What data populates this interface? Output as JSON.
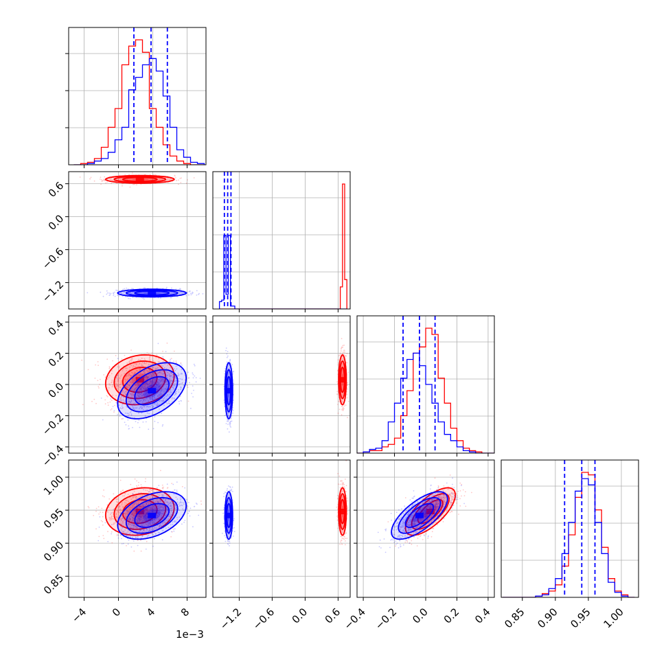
{
  "chart_data": {
    "type": "corner",
    "parameters": [
      {
        "range": [
          -5.8,
          10.2
        ],
        "ticks": [
          -4,
          0,
          4,
          8
        ],
        "tick_labels": [
          "−4",
          "0",
          "4",
          "8"
        ],
        "offset_text": "1e−3"
      },
      {
        "range": [
          -1.68,
          0.82
        ],
        "ticks": [
          -1.2,
          -0.6,
          0.0,
          0.6
        ],
        "tick_labels": [
          "−1.2",
          "−0.6",
          "0.0",
          "0.6"
        ]
      },
      {
        "range": [
          -0.44,
          0.44
        ],
        "ticks": [
          -0.4,
          -0.2,
          0.0,
          0.2,
          0.4
        ],
        "tick_labels": [
          "−0.4",
          "−0.2",
          "0.0",
          "0.2",
          "0.4"
        ]
      },
      {
        "range": [
          0.818,
          1.026
        ],
        "ticks": [
          0.85,
          0.9,
          0.95,
          1.0
        ],
        "tick_labels": [
          "0.85",
          "0.90",
          "0.95",
          "1.00"
        ]
      }
    ],
    "series": [
      {
        "color": "#ff0000",
        "mean": [
          2.5,
          0.68,
          0.03,
          0.948
        ],
        "std": [
          2.0,
          0.035,
          0.08,
          0.018
        ],
        "corr": {
          "0_2": 0.15,
          "0_3": 0.15,
          "2_3": 0.7
        }
      },
      {
        "color": "#0000ff",
        "mean": [
          3.9,
          -1.39,
          -0.04,
          0.942
        ],
        "std": [
          2.0,
          0.035,
          0.09,
          0.018
        ],
        "corr": {
          "0_2": 0.45,
          "0_3": 0.4,
          "2_3": 0.7
        }
      }
    ],
    "quantile_lines": {
      "color": "#0000ff",
      "values": [
        [
          1.8,
          3.8,
          5.7
        ],
        [
          -1.47,
          -1.41,
          -1.35
        ],
        [
          -0.145,
          -0.04,
          0.06
        ],
        [
          0.914,
          0.94,
          0.96
        ]
      ]
    },
    "histograms": [
      {
        "bins": [
          -5.2,
          -4.4,
          -3.6,
          -2.8,
          -2.0,
          -1.2,
          -0.4,
          0.4,
          1.2,
          2.0,
          2.8,
          3.6,
          4.4,
          5.2,
          6.0,
          6.8,
          7.6,
          8.4,
          9.2,
          10.0
        ],
        "red": [
          0.0,
          0.01,
          0.02,
          0.05,
          0.14,
          0.3,
          0.45,
          0.8,
          0.95,
          1.0,
          0.9,
          0.45,
          0.3,
          0.16,
          0.07,
          0.03,
          0.01,
          0.0,
          0.0
        ],
        "blue": [
          0.0,
          0.0,
          0.01,
          0.03,
          0.05,
          0.1,
          0.2,
          0.3,
          0.6,
          0.7,
          0.8,
          0.85,
          0.75,
          0.55,
          0.3,
          0.12,
          0.06,
          0.02,
          0.01
        ]
      },
      {
        "bins": [
          -1.56,
          -1.52,
          -1.48,
          -1.44,
          -1.4,
          -1.36,
          -1.32,
          -1.28,
          -1.24,
          0.56,
          0.6,
          0.64,
          0.68,
          0.72,
          0.76
        ],
        "red": [
          0,
          0,
          0,
          0,
          0,
          0,
          0,
          0,
          0,
          0,
          0,
          0.15,
          0.85,
          0.2
        ],
        "blue": [
          0.05,
          0.06,
          0.5,
          0.1,
          0.5,
          0.02,
          0.02,
          0,
          0,
          0,
          0,
          0,
          0,
          0
        ]
      },
      {
        "bins": [
          -0.44,
          -0.4,
          -0.36,
          -0.32,
          -0.28,
          -0.24,
          -0.2,
          -0.16,
          -0.12,
          -0.08,
          -0.04,
          0.0,
          0.04,
          0.08,
          0.12,
          0.16,
          0.2,
          0.24,
          0.28,
          0.32,
          0.36,
          0.4,
          0.44
        ],
        "red": [
          0,
          0.01,
          0.02,
          0.02,
          0.05,
          0.07,
          0.12,
          0.3,
          0.5,
          0.8,
          0.85,
          1.0,
          0.95,
          0.6,
          0.4,
          0.2,
          0.1,
          0.04,
          0.02,
          0.01,
          0.0,
          0.0
        ],
        "blue": [
          0,
          0.01,
          0.03,
          0.04,
          0.1,
          0.25,
          0.4,
          0.6,
          0.75,
          0.8,
          0.7,
          0.55,
          0.4,
          0.25,
          0.15,
          0.1,
          0.05,
          0.02,
          0.01,
          0.0,
          0.0,
          0.0
        ]
      },
      {
        "bins": [
          0.82,
          0.83,
          0.84,
          0.85,
          0.86,
          0.87,
          0.88,
          0.89,
          0.9,
          0.91,
          0.92,
          0.93,
          0.94,
          0.95,
          0.96,
          0.97,
          0.98,
          0.99,
          1.0,
          1.01,
          1.02
        ],
        "red": [
          0,
          0,
          0,
          0,
          0,
          0.01,
          0.03,
          0.05,
          0.1,
          0.25,
          0.5,
          0.8,
          1.0,
          0.98,
          0.7,
          0.4,
          0.15,
          0.05,
          0.02,
          0.0
        ],
        "blue": [
          0,
          0,
          0,
          0,
          0,
          0.01,
          0.02,
          0.07,
          0.15,
          0.35,
          0.6,
          0.85,
          0.95,
          0.9,
          0.6,
          0.35,
          0.12,
          0.04,
          0.01,
          0.0
        ]
      }
    ],
    "grid": true
  }
}
